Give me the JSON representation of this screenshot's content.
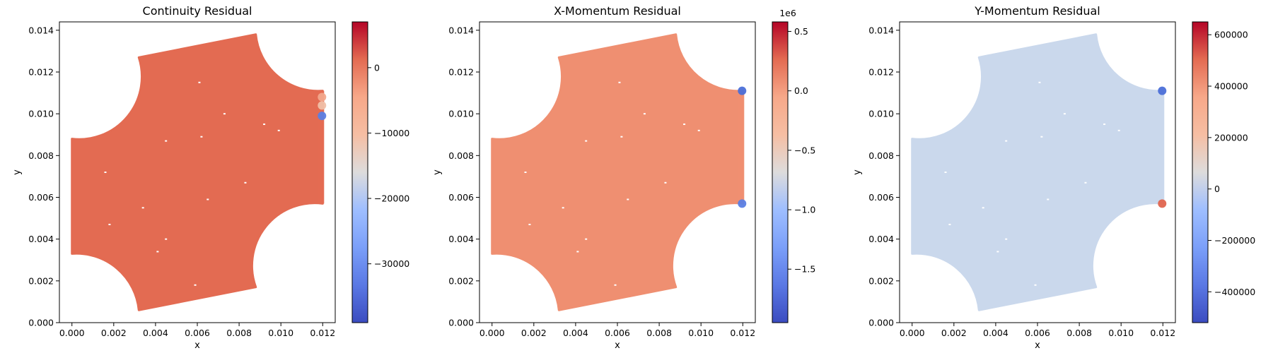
{
  "chart_data": [
    {
      "type": "scatter",
      "title": "Continuity Residual",
      "xlabel": "x",
      "ylabel": "y",
      "xlim": [
        -0.0006,
        0.0126
      ],
      "ylim": [
        0.0,
        0.0144
      ],
      "xticks": [
        0.0,
        0.002,
        0.004,
        0.006,
        0.008,
        0.01,
        0.012
      ],
      "xtick_labels": [
        "0.000",
        "0.002",
        "0.004",
        "0.006",
        "0.008",
        "0.010",
        "0.012"
      ],
      "yticks": [
        0.0,
        0.002,
        0.004,
        0.006,
        0.008,
        0.01,
        0.012,
        0.014
      ],
      "ytick_labels": [
        "0.000",
        "0.002",
        "0.004",
        "0.006",
        "0.008",
        "0.010",
        "0.012",
        "0.014"
      ],
      "grid": false,
      "colormap": "coolwarm",
      "domain_color": "#e36b52",
      "colorbar": {
        "vmin": -39000,
        "vmax": 7000,
        "ticks": [
          0,
          -10000,
          -20000,
          -30000
        ],
        "tick_labels": [
          "0",
          "−10000",
          "−20000",
          "−30000"
        ],
        "offset_label": ""
      },
      "points": [
        {
          "x": 0.012,
          "y": 0.0099,
          "value": -36000,
          "color": "#5b7fe4"
        },
        {
          "x": 0.012,
          "y": 0.0104,
          "value": -8000,
          "color": "#f0c0a8"
        },
        {
          "x": 0.012,
          "y": 0.0108,
          "value": -5000,
          "color": "#f2a88c"
        }
      ]
    },
    {
      "type": "scatter",
      "title": "X-Momentum Residual",
      "xlabel": "x",
      "ylabel": "y",
      "xlim": [
        -0.0006,
        0.0126
      ],
      "ylim": [
        0.0,
        0.0144
      ],
      "xticks": [
        0.0,
        0.002,
        0.004,
        0.006,
        0.008,
        0.01,
        0.012
      ],
      "xtick_labels": [
        "0.000",
        "0.002",
        "0.004",
        "0.006",
        "0.008",
        "0.010",
        "0.012"
      ],
      "yticks": [
        0.0,
        0.002,
        0.004,
        0.006,
        0.008,
        0.01,
        0.012,
        0.014
      ],
      "ytick_labels": [
        "0.000",
        "0.002",
        "0.004",
        "0.006",
        "0.008",
        "0.010",
        "0.012",
        "0.014"
      ],
      "grid": false,
      "colormap": "coolwarm",
      "domain_color": "#ef8f71",
      "colorbar": {
        "vmin": -1.95,
        "vmax": 0.58,
        "ticks": [
          0.5,
          0.0,
          -0.5,
          -1.0,
          -1.5
        ],
        "tick_labels": [
          "0.5",
          "0.0",
          "−0.5",
          "−1.0",
          "−1.5"
        ],
        "offset_label": "1e6"
      },
      "points": [
        {
          "x": 0.012,
          "y": 0.0111,
          "value": -1.85,
          "color": "#4b6fd8"
        },
        {
          "x": 0.012,
          "y": 0.0057,
          "value": -1.7,
          "color": "#5b7fe4"
        }
      ]
    },
    {
      "type": "scatter",
      "title": "Y-Momentum Residual",
      "xlabel": "x",
      "ylabel": "y",
      "xlim": [
        -0.0006,
        0.0126
      ],
      "ylim": [
        0.0,
        0.0144
      ],
      "xticks": [
        0.0,
        0.002,
        0.004,
        0.006,
        0.008,
        0.01,
        0.012
      ],
      "xtick_labels": [
        "0.000",
        "0.002",
        "0.004",
        "0.006",
        "0.008",
        "0.010",
        "0.012"
      ],
      "yticks": [
        0.0,
        0.002,
        0.004,
        0.006,
        0.008,
        0.01,
        0.012,
        0.014
      ],
      "ytick_labels": [
        "0.000",
        "0.002",
        "0.004",
        "0.006",
        "0.008",
        "0.010",
        "0.012",
        "0.014"
      ],
      "grid": false,
      "colormap": "coolwarm",
      "domain_color": "#cad8ec",
      "colorbar": {
        "vmin": -520000,
        "vmax": 650000,
        "ticks": [
          600000,
          400000,
          200000,
          0,
          -200000,
          -400000
        ],
        "tick_labels": [
          "600000",
          "400000",
          "200000",
          "0",
          "−200000",
          "−400000"
        ],
        "offset_label": ""
      },
      "points": [
        {
          "x": 0.012,
          "y": 0.0111,
          "value": -480000,
          "color": "#4b6fd8"
        },
        {
          "x": 0.012,
          "y": 0.0057,
          "value": 450000,
          "color": "#e0654f"
        }
      ]
    }
  ]
}
